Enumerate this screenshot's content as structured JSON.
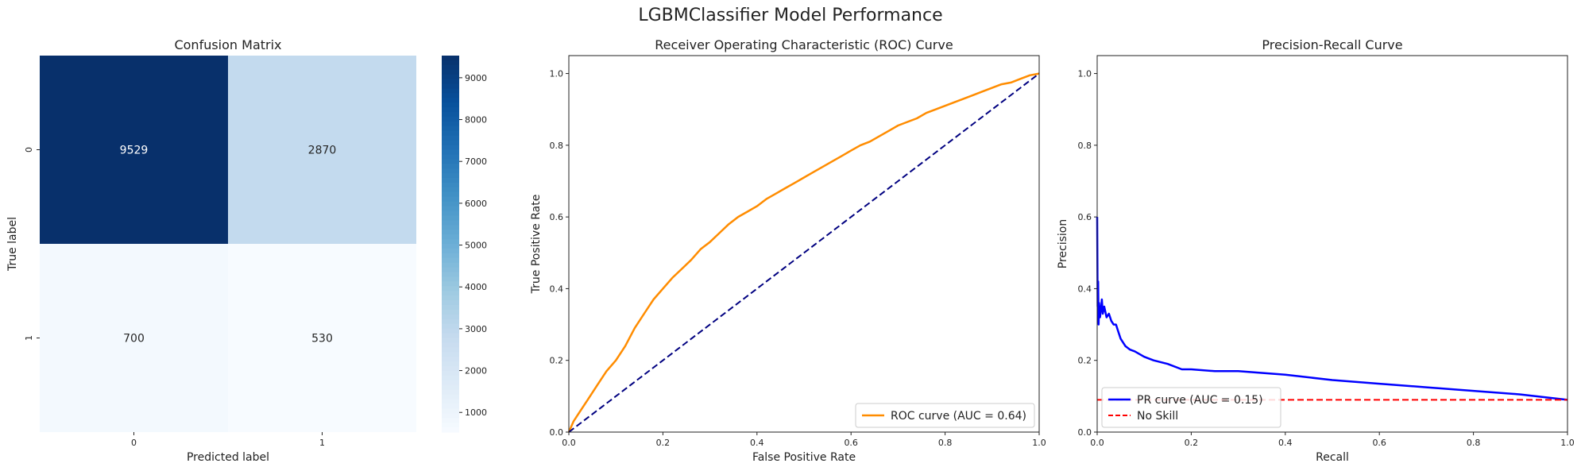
{
  "figure": {
    "title": "LGBMClassifier Model Performance"
  },
  "chart_data": [
    {
      "type": "heatmap",
      "title": "Confusion Matrix",
      "xlabel": "Predicted label",
      "ylabel": "True label",
      "x_categories": [
        "0",
        "1"
      ],
      "y_categories": [
        "0",
        "1"
      ],
      "values": [
        [
          9529,
          2870
        ],
        [
          700,
          530
        ]
      ],
      "colormap": "Blues",
      "colorbar": {
        "min": 530,
        "max": 9529,
        "ticks": [
          1000,
          2000,
          3000,
          4000,
          5000,
          6000,
          7000,
          8000,
          9000
        ]
      }
    },
    {
      "type": "line",
      "title": "Receiver Operating Characteristic (ROC) Curve",
      "xlabel": "False Positive Rate",
      "ylabel": "True Positive Rate",
      "xlim": [
        0,
        1
      ],
      "ylim": [
        0,
        1.05
      ],
      "xticks": [
        "0.0",
        "0.2",
        "0.4",
        "0.6",
        "0.8",
        "1.0"
      ],
      "yticks": [
        "0.0",
        "0.2",
        "0.4",
        "0.6",
        "0.8",
        "1.0"
      ],
      "legend_position": "lower right",
      "series": [
        {
          "name": "ROC curve (AUC = 0.64)",
          "color": "#ff8c00",
          "style": "solid",
          "x": [
            0,
            0.01,
            0.02,
            0.04,
            0.06,
            0.08,
            0.1,
            0.12,
            0.14,
            0.16,
            0.18,
            0.2,
            0.22,
            0.24,
            0.26,
            0.28,
            0.3,
            0.32,
            0.34,
            0.36,
            0.38,
            0.4,
            0.42,
            0.44,
            0.46,
            0.48,
            0.5,
            0.52,
            0.54,
            0.56,
            0.58,
            0.6,
            0.62,
            0.64,
            0.66,
            0.68,
            0.7,
            0.72,
            0.74,
            0.76,
            0.78,
            0.8,
            0.82,
            0.84,
            0.86,
            0.88,
            0.9,
            0.92,
            0.94,
            0.96,
            0.98,
            1.0
          ],
          "y": [
            0,
            0.03,
            0.05,
            0.09,
            0.13,
            0.17,
            0.2,
            0.24,
            0.29,
            0.33,
            0.37,
            0.4,
            0.43,
            0.455,
            0.48,
            0.51,
            0.53,
            0.555,
            0.58,
            0.6,
            0.615,
            0.63,
            0.65,
            0.665,
            0.68,
            0.695,
            0.71,
            0.725,
            0.74,
            0.755,
            0.77,
            0.785,
            0.8,
            0.81,
            0.825,
            0.84,
            0.855,
            0.865,
            0.875,
            0.89,
            0.9,
            0.91,
            0.92,
            0.93,
            0.94,
            0.95,
            0.96,
            0.97,
            0.975,
            0.985,
            0.995,
            1.0
          ]
        },
        {
          "name": "",
          "color": "#000080",
          "style": "dashed",
          "x": [
            0,
            1
          ],
          "y": [
            0,
            1
          ]
        }
      ]
    },
    {
      "type": "line",
      "title": "Precision-Recall Curve",
      "xlabel": "Recall",
      "ylabel": "Precision",
      "xlim": [
        0,
        1
      ],
      "ylim": [
        0,
        1.05
      ],
      "xticks": [
        "0.0",
        "0.2",
        "0.4",
        "0.6",
        "0.8",
        "1.0"
      ],
      "yticks": [
        "0.0",
        "0.2",
        "0.4",
        "0.6",
        "0.8",
        "1.0"
      ],
      "legend_position": "lower left",
      "series": [
        {
          "name": "PR curve (AUC = 0.15)",
          "color": "#0000ff",
          "style": "solid",
          "x": [
            0,
            0.001,
            0.002,
            0.003,
            0.004,
            0.006,
            0.008,
            0.01,
            0.012,
            0.015,
            0.02,
            0.025,
            0.03,
            0.035,
            0.04,
            0.045,
            0.05,
            0.06,
            0.07,
            0.08,
            0.1,
            0.12,
            0.15,
            0.18,
            0.2,
            0.25,
            0.3,
            0.35,
            0.4,
            0.5,
            0.6,
            0.7,
            0.8,
            0.9,
            1.0
          ],
          "y": [
            0.6,
            0.35,
            0.42,
            0.3,
            0.36,
            0.32,
            0.34,
            0.37,
            0.33,
            0.35,
            0.32,
            0.33,
            0.31,
            0.3,
            0.3,
            0.28,
            0.26,
            0.24,
            0.23,
            0.225,
            0.21,
            0.2,
            0.19,
            0.175,
            0.175,
            0.17,
            0.17,
            0.165,
            0.16,
            0.145,
            0.135,
            0.125,
            0.115,
            0.105,
            0.09
          ]
        },
        {
          "name": "No Skill",
          "color": "#ff0000",
          "style": "dashed",
          "x": [
            0,
            1
          ],
          "y": [
            0.09,
            0.09
          ]
        }
      ]
    }
  ]
}
